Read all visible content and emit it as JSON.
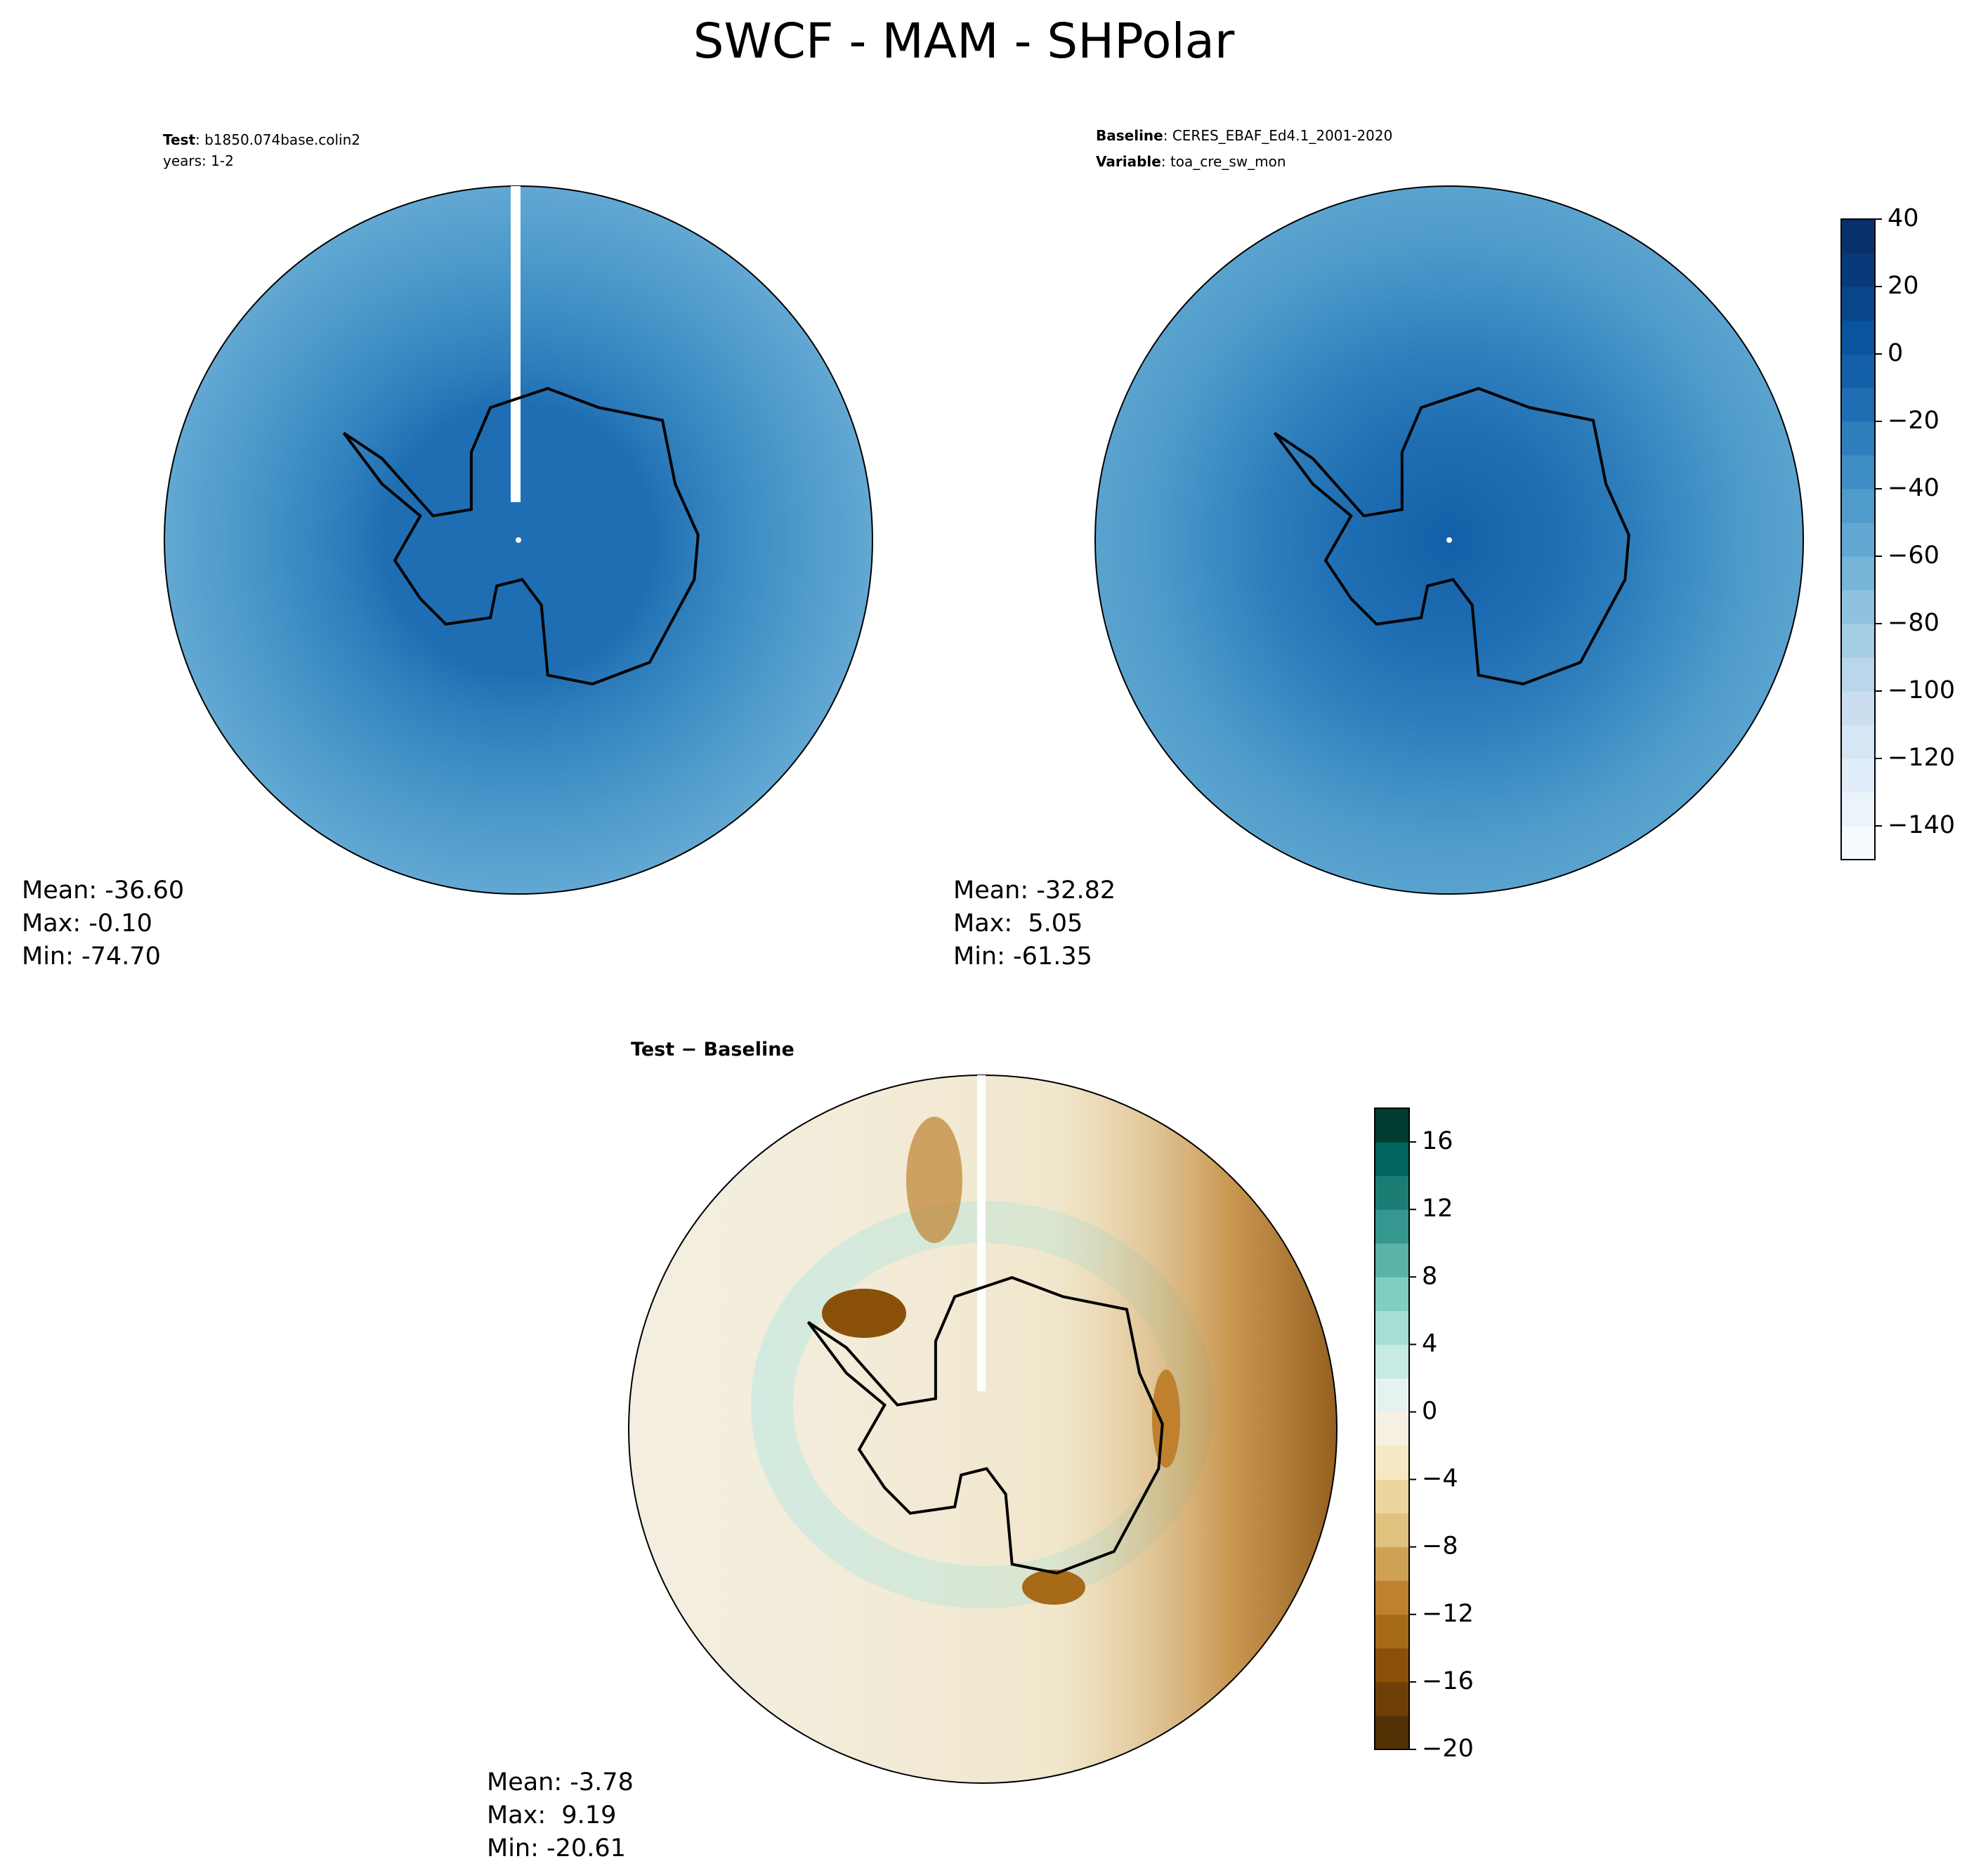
{
  "title": "SWCF - MAM - SHPolar",
  "panels": [
    {
      "header": [
        {
          "bold": "Test",
          "text": ": b1850.074base.colin2"
        },
        {
          "text": "years: 1-2"
        }
      ],
      "stats": [
        "Mean: -36.60",
        "Max: -0.10",
        "Min: -74.70"
      ]
    },
    {
      "header": [
        {
          "bold": "Baseline",
          "text": ": CERES_EBAF_Ed4.1_2001-2020"
        },
        {
          "bold": "Variable",
          "text": ": toa_cre_sw_mon"
        }
      ],
      "stats": [
        "Mean: -32.82",
        "Max:  5.05",
        "Min: -61.35"
      ]
    },
    {
      "heading": "Test − Baseline",
      "stats": [
        "Mean: -3.78",
        "Max:  9.19",
        "Min: -20.61"
      ]
    }
  ],
  "colorbars": [
    {
      "lim": [
        -150,
        40
      ],
      "ticks": [
        40,
        20,
        0,
        {
          "value": -20,
          "label": "−20"
        },
        {
          "value": -40,
          "label": "−40"
        },
        {
          "value": -60,
          "label": "−60"
        },
        {
          "value": -80,
          "label": "−80"
        },
        {
          "value": -100,
          "label": "−100"
        },
        {
          "value": -120,
          "label": "−120"
        },
        {
          "value": -140,
          "label": "−140"
        }
      ],
      "colors": [
        "#f7fbff",
        "#ebf3fb",
        "#e1edf8",
        "#d6e6f4",
        "#cadef0",
        "#bad6eb",
        "#a5cde3",
        "#8fc2de",
        "#77b5d9",
        "#62a8d3",
        "#4f9bcb",
        "#3d8dc4",
        "#2e7ebc",
        "#1f6eb3",
        "#1460a8",
        "#0a539e",
        "#08458a",
        "#083a7a",
        "#08306b"
      ]
    },
    {
      "lim": [
        -20,
        18
      ],
      "ticks": [
        16,
        12,
        8,
        4,
        0,
        {
          "value": -4,
          "label": "−4"
        },
        {
          "value": -8,
          "label": "−8"
        },
        {
          "value": -12,
          "label": "−12"
        },
        {
          "value": -16,
          "label": "−16"
        },
        {
          "value": -20,
          "label": "−20"
        }
      ],
      "colors": [
        "#543005",
        "#6f3f07",
        "#8a500a",
        "#a66a19",
        "#bf812d",
        "#cfa155",
        "#dfc27d",
        "#ebd69f",
        "#f6e8c3",
        "#f5f0e1",
        "#e6f2f0",
        "#c7eae5",
        "#a6ddd4",
        "#80cdc1",
        "#5ab2a8",
        "#35978f",
        "#1b7d74",
        "#01665e",
        "#003c30"
      ]
    }
  ]
}
